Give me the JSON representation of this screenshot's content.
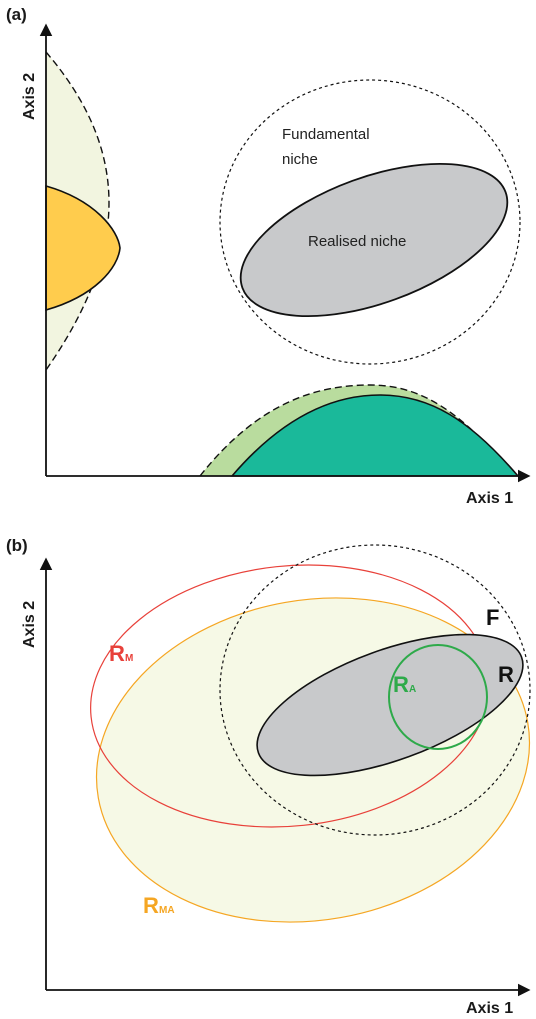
{
  "panel_a": {
    "label": "(a)",
    "x_axis": "Axis 1",
    "y_axis": "Axis 2",
    "fundamental_line1": "Fundamental",
    "fundamental_line2": "niche",
    "realised": "Realised niche"
  },
  "panel_b": {
    "label": "(b)",
    "x_axis": "Axis 1",
    "y_axis": "Axis 2",
    "F": "F",
    "R": "R",
    "RM_main": "R",
    "RM_sub": "M",
    "RA_main": "R",
    "RA_sub": "A",
    "RMA_main": "R",
    "RMA_sub": "MA"
  },
  "colors": {
    "orange_fill": "#ffcc4d",
    "pale_yellow_fill": "#f2f5e0",
    "teal_fill": "#1ab99a",
    "light_green_fill": "#b9dc9e",
    "grey_fill": "#c8c9cb",
    "red": "#e8413a",
    "orange_line": "#f5a623",
    "green": "#2eaa4a",
    "RMA_fill": "#f6f9e6"
  }
}
